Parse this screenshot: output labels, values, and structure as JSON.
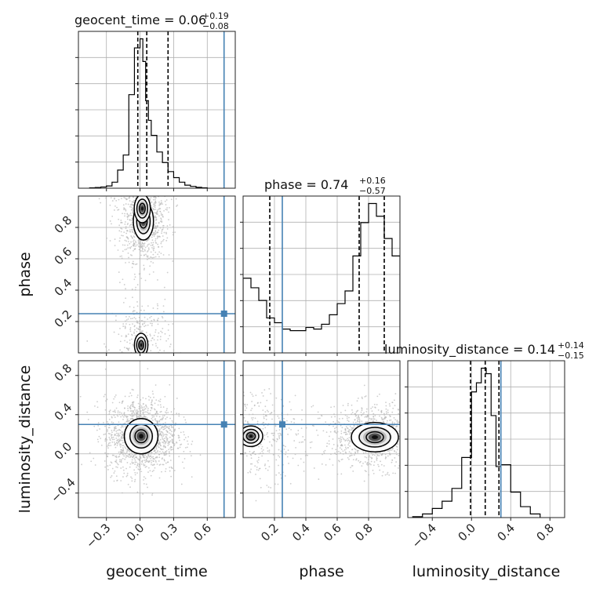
{
  "chart_data": {
    "type": "corner",
    "parameters": [
      "geocent_time",
      "phase",
      "luminosity_distance"
    ],
    "axis_labels": {
      "geocent_time": "geocent_time",
      "phase": "phase",
      "luminosity_distance": "luminosity_distance"
    },
    "ranges": {
      "geocent_time": [
        -0.55,
        0.85
      ],
      "phase": [
        0.0,
        1.0
      ],
      "luminosity_distance": [
        -0.65,
        0.95
      ]
    },
    "ticks": {
      "geocent_time": [
        -0.3,
        0.0,
        0.3,
        0.6
      ],
      "phase": [
        0.2,
        0.4,
        0.6,
        0.8
      ],
      "luminosity_distance": [
        -0.4,
        0.0,
        0.4,
        0.8
      ]
    },
    "tick_labels": {
      "geocent_time": [
        "−0.3",
        "0.0",
        "0.3",
        "0.6"
      ],
      "phase": [
        "0.2",
        "0.4",
        "0.6",
        "0.8"
      ],
      "luminosity_distance": [
        "−0.4",
        "0.0",
        "0.4",
        "0.8"
      ]
    },
    "injection": {
      "geocent_time": 0.75,
      "phase": 0.25,
      "luminosity_distance": 0.3
    },
    "summaries": {
      "geocent_time": {
        "name": "geocent_time",
        "median_label": "0.06",
        "plus_label": "+0.19",
        "minus_label": "−0.08",
        "median": 0.06,
        "plus": 0.19,
        "minus": 0.08
      },
      "phase": {
        "name": "phase",
        "median_label": "0.74",
        "plus_label": "+0.16",
        "minus_label": "−0.57",
        "median": 0.74,
        "plus": 0.16,
        "minus": 0.57
      },
      "luminosity_distance": {
        "name": "luminosity_distance",
        "median_label": "0.14",
        "plus_label": "+0.14",
        "minus_label": "−0.15",
        "median": 0.14,
        "plus": 0.14,
        "minus": 0.15
      }
    },
    "histograms": {
      "geocent_time": {
        "edges": [
          -0.45,
          -0.4,
          -0.35,
          -0.3,
          -0.25,
          -0.2,
          -0.15,
          -0.1,
          -0.05,
          0.0,
          0.025,
          0.05,
          0.075,
          0.1,
          0.15,
          0.2,
          0.25,
          0.3,
          0.35,
          0.4,
          0.45,
          0.5,
          0.55,
          0.6
        ],
        "counts": [
          0.003,
          0.005,
          0.008,
          0.015,
          0.04,
          0.12,
          0.22,
          0.62,
          0.93,
          0.99,
          0.84,
          0.58,
          0.45,
          0.35,
          0.24,
          0.17,
          0.11,
          0.07,
          0.04,
          0.02,
          0.012,
          0.006,
          0.003
        ]
      },
      "phase": {
        "edges": [
          0.0,
          0.05,
          0.1,
          0.15,
          0.2,
          0.25,
          0.3,
          0.35,
          0.4,
          0.45,
          0.5,
          0.55,
          0.6,
          0.65,
          0.7,
          0.75,
          0.8,
          0.85,
          0.9,
          0.95,
          1.0
        ],
        "counts": [
          0.47,
          0.41,
          0.33,
          0.22,
          0.19,
          0.15,
          0.14,
          0.14,
          0.16,
          0.15,
          0.18,
          0.24,
          0.31,
          0.39,
          0.61,
          0.82,
          0.94,
          0.86,
          0.72,
          0.61
        ]
      },
      "luminosity_distance": {
        "edges": [
          -0.6,
          -0.5,
          -0.4,
          -0.3,
          -0.2,
          -0.1,
          0.0,
          0.05,
          0.1,
          0.15,
          0.2,
          0.25,
          0.3,
          0.4,
          0.5,
          0.6,
          0.7
        ],
        "counts": [
          0.005,
          0.02,
          0.05,
          0.09,
          0.16,
          0.33,
          0.69,
          0.74,
          0.82,
          0.79,
          0.56,
          0.28,
          0.29,
          0.14,
          0.06,
          0.02
        ]
      }
    },
    "contours_2d": {
      "phase_vs_geocent_time": {
        "density_peaks": [
          {
            "x": 0.03,
            "y": 0.84,
            "level": 1.0,
            "sx": 0.03,
            "sy": 0.04
          },
          {
            "x": 0.02,
            "y": 0.92,
            "level": 0.6,
            "sx": 0.04,
            "sy": 0.05
          },
          {
            "x": 0.01,
            "y": 0.05,
            "level": 0.5,
            "sx": 0.04,
            "sy": 0.05
          }
        ]
      },
      "luminosity_distance_vs_geocent_time": {
        "density_peaks": [
          {
            "x": 0.01,
            "y": 0.18,
            "level": 1.0,
            "sx": 0.05,
            "sy": 0.06
          }
        ]
      },
      "luminosity_distance_vs_phase": {
        "density_peaks": [
          {
            "x": 0.84,
            "y": 0.17,
            "level": 1.0,
            "sx": 0.05,
            "sy": 0.05
          },
          {
            "x": 0.05,
            "y": 0.18,
            "level": 0.5,
            "sx": 0.05,
            "sy": 0.07
          }
        ]
      }
    },
    "colors": {
      "injection": "#4682b4",
      "lines": "#000000",
      "grid": "#b0b0b0",
      "samples": "#b8b8b8"
    },
    "grid": true
  }
}
